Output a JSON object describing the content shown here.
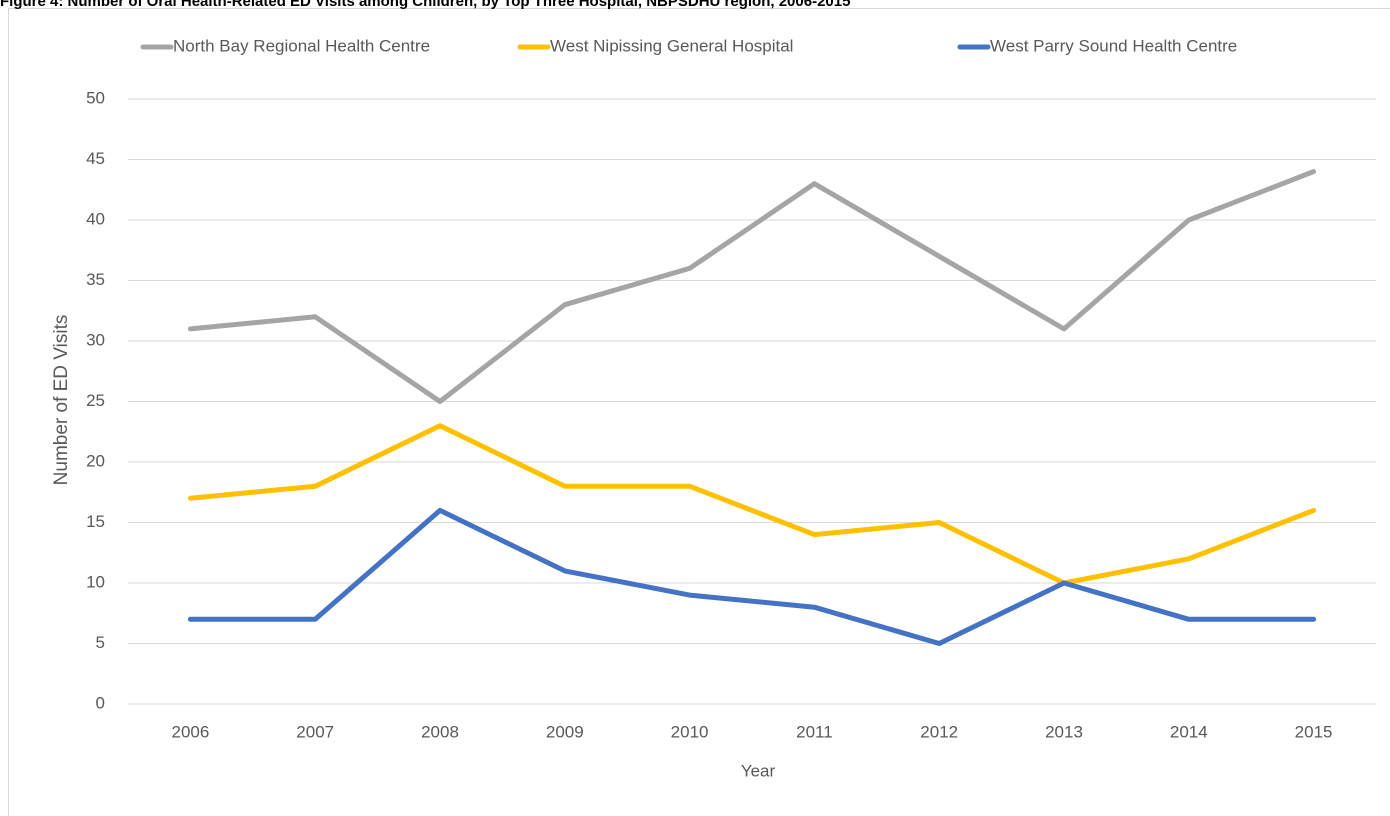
{
  "chart_data": {
    "type": "line",
    "title": "Figure 4: Number of Oral Health-Related ED Visits among Children, by Top Three Hospital, NBPSDHU region, 2006-2015",
    "x_label": "Year",
    "y_label": "Number of ED Visits",
    "categories": [
      "2006",
      "2007",
      "2008",
      "2009",
      "2010",
      "2011",
      "2012",
      "2013",
      "2014",
      "2015"
    ],
    "series": [
      {
        "name": "North Bay Regional Health Centre",
        "color": "#a5a5a5",
        "values": [
          31,
          32,
          25,
          33,
          36,
          43,
          37,
          31,
          40,
          44
        ]
      },
      {
        "name": "West Nipissing General Hospital",
        "color": "#ffc000",
        "values": [
          17,
          18,
          23,
          18,
          18,
          14,
          15,
          10,
          12,
          16
        ]
      },
      {
        "name": "West Parry Sound Health Centre",
        "color": "#4472c4",
        "values": [
          7,
          7,
          16,
          11,
          9,
          8,
          5,
          10,
          7,
          7
        ]
      }
    ],
    "ylim": [
      0,
      50
    ],
    "yticks": [
      0,
      5,
      10,
      15,
      20,
      25,
      30,
      35,
      40,
      45,
      50
    ],
    "grid": true,
    "legend": "top"
  }
}
